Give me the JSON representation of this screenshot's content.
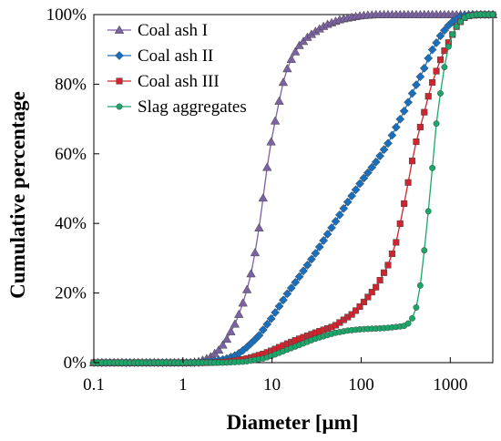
{
  "chart_data": {
    "type": "line",
    "xlabel": "Diameter [μm]",
    "ylabel": "Cumulative percentage",
    "xscale": "log",
    "xlim": [
      0.1,
      3000
    ],
    "ylim": [
      0,
      100
    ],
    "x_ticks": [
      0.1,
      1,
      10,
      100,
      1000
    ],
    "x_tick_labels": [
      "0.1",
      "1",
      "10",
      "100",
      "1000"
    ],
    "y_ticks": [
      0,
      20,
      40,
      60,
      80,
      100
    ],
    "y_tick_labels": [
      "0%",
      "20%",
      "40%",
      "60%",
      "80%",
      "100%"
    ],
    "grid": false,
    "legend_position": "top-left",
    "series": [
      {
        "name": "Coal ash I",
        "color": "#7b62a3",
        "marker": "triangle",
        "cdf": [
          [
            0.1,
            0
          ],
          [
            1.2,
            0
          ],
          [
            1.5,
            0.3
          ],
          [
            2,
            1.5
          ],
          [
            2.5,
            3.5
          ],
          [
            3,
            6
          ],
          [
            4,
            12
          ],
          [
            5,
            19
          ],
          [
            6,
            27
          ],
          [
            7,
            37
          ],
          [
            8,
            48
          ],
          [
            9,
            58
          ],
          [
            10,
            65
          ],
          [
            12,
            75
          ],
          [
            14,
            83
          ],
          [
            17,
            88
          ],
          [
            20,
            91
          ],
          [
            25,
            93.5
          ],
          [
            30,
            95
          ],
          [
            40,
            97
          ],
          [
            60,
            98.7
          ],
          [
            100,
            99.7
          ],
          [
            150,
            100
          ],
          [
            3000,
            100
          ]
        ]
      },
      {
        "name": "Coal ash II",
        "color": "#1a6fbd",
        "marker": "diamond",
        "cdf": [
          [
            0.1,
            0
          ],
          [
            1.5,
            0
          ],
          [
            2,
            0.3
          ],
          [
            3,
            1
          ],
          [
            4,
            2.2
          ],
          [
            5,
            4
          ],
          [
            7,
            7.5
          ],
          [
            10,
            13
          ],
          [
            15,
            20
          ],
          [
            20,
            24.5
          ],
          [
            30,
            31
          ],
          [
            50,
            40
          ],
          [
            70,
            46
          ],
          [
            100,
            52
          ],
          [
            150,
            58
          ],
          [
            200,
            63
          ],
          [
            300,
            72
          ],
          [
            400,
            79
          ],
          [
            500,
            84
          ],
          [
            600,
            89
          ],
          [
            800,
            94.5
          ],
          [
            1000,
            97.5
          ],
          [
            1300,
            99.5
          ],
          [
            1700,
            100
          ],
          [
            3000,
            100
          ]
        ]
      },
      {
        "name": "Coal ash III",
        "color": "#d0252e",
        "marker": "square",
        "cdf": [
          [
            0.1,
            0
          ],
          [
            2,
            0
          ],
          [
            3,
            0.2
          ],
          [
            5,
            1
          ],
          [
            8,
            2.5
          ],
          [
            10,
            3.5
          ],
          [
            15,
            5.5
          ],
          [
            20,
            6.8
          ],
          [
            30,
            8.5
          ],
          [
            50,
            10.5
          ],
          [
            80,
            14
          ],
          [
            100,
            16.5
          ],
          [
            150,
            22
          ],
          [
            200,
            28
          ],
          [
            250,
            35
          ],
          [
            300,
            45
          ],
          [
            350,
            54
          ],
          [
            400,
            62
          ],
          [
            500,
            71
          ],
          [
            600,
            79
          ],
          [
            800,
            88
          ],
          [
            1000,
            93
          ],
          [
            1200,
            97
          ],
          [
            1500,
            99.5
          ],
          [
            2000,
            100
          ],
          [
            3000,
            100
          ]
        ]
      },
      {
        "name": "Slag aggregates",
        "color": "#1aa76a",
        "marker": "circle",
        "cdf": [
          [
            0.1,
            0
          ],
          [
            3,
            0
          ],
          [
            5,
            0.3
          ],
          [
            8,
            1.2
          ],
          [
            10,
            2
          ],
          [
            15,
            3.8
          ],
          [
            20,
            5
          ],
          [
            30,
            6.8
          ],
          [
            50,
            8.5
          ],
          [
            70,
            9.2
          ],
          [
            100,
            9.6
          ],
          [
            150,
            9.8
          ],
          [
            200,
            10
          ],
          [
            300,
            10.5
          ],
          [
            350,
            11.5
          ],
          [
            400,
            14
          ],
          [
            450,
            20
          ],
          [
            500,
            30
          ],
          [
            550,
            40
          ],
          [
            600,
            50
          ],
          [
            650,
            60
          ],
          [
            700,
            69
          ],
          [
            800,
            80
          ],
          [
            900,
            88
          ],
          [
            1000,
            93
          ],
          [
            1200,
            97
          ],
          [
            1500,
            99.5
          ],
          [
            2000,
            100
          ],
          [
            3000,
            100
          ]
        ]
      }
    ]
  }
}
